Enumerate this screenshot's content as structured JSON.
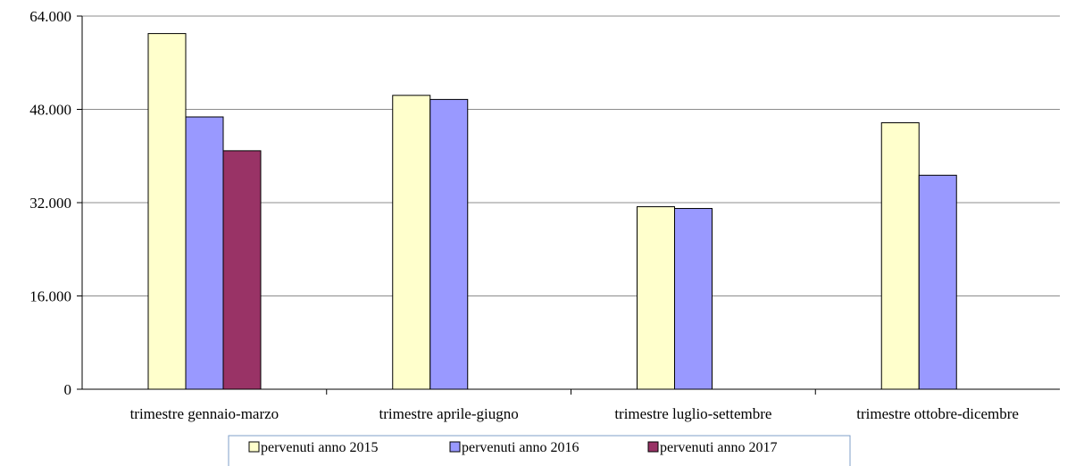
{
  "chart_data": {
    "type": "bar",
    "title": "",
    "xlabel": "",
    "ylabel": "",
    "ylim": [
      0,
      64000
    ],
    "yticks": [
      0,
      16000,
      32000,
      48000,
      64000
    ],
    "ytick_labels": [
      "0",
      "16.000",
      "32.000",
      "48.000",
      "64.000"
    ],
    "grid": true,
    "legend_position": "bottom",
    "categories": [
      "trimestre gennaio-marzo",
      "trimestre aprile-giugno",
      "trimestre luglio-settembre",
      "trimestre ottobre-dicembre"
    ],
    "series": [
      {
        "name": "pervenuti anno 2015",
        "color": "#FFFFCC",
        "values": [
          61000,
          50400,
          31300,
          45700
        ]
      },
      {
        "name": "pervenuti anno 2016",
        "color": "#9999FF",
        "values": [
          46700,
          49700,
          31000,
          36700
        ]
      },
      {
        "name": "pervenuti anno 2017",
        "color": "#993366",
        "values": [
          40900,
          null,
          null,
          null
        ]
      }
    ]
  }
}
